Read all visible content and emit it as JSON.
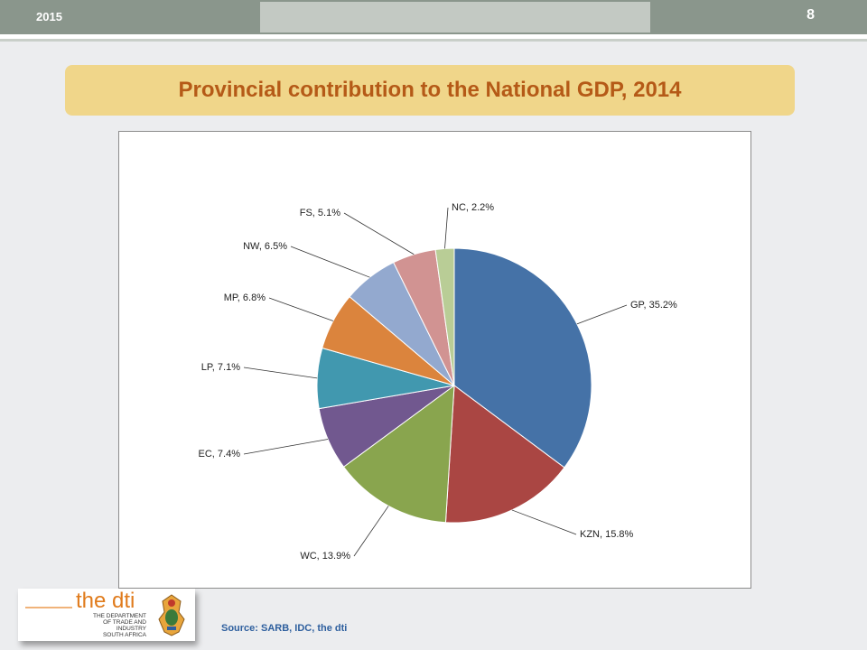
{
  "header": {
    "year": "2015",
    "page_number": "8"
  },
  "title": "Provincial contribution to the National GDP, 2014",
  "chart_data": {
    "type": "pie",
    "title": "Provincial contribution to the National GDP, 2014",
    "slices": [
      {
        "label": "GP, 35.2%",
        "name": "GP",
        "value": 35.2,
        "color": "#4572a7"
      },
      {
        "label": "KZN, 15.8%",
        "name": "KZN",
        "value": 15.8,
        "color": "#aa4643"
      },
      {
        "label": "WC, 13.9%",
        "name": "WC",
        "value": 13.9,
        "color": "#89a54e"
      },
      {
        "label": "EC, 7.4%",
        "name": "EC",
        "value": 7.4,
        "color": "#71588f"
      },
      {
        "label": "LP, 7.1%",
        "name": "LP",
        "value": 7.1,
        "color": "#4198af"
      },
      {
        "label": "MP, 6.8%",
        "name": "MP",
        "value": 6.8,
        "color": "#db843d"
      },
      {
        "label": "NW, 6.5%",
        "name": "NW",
        "value": 6.5,
        "color": "#93a9cf"
      },
      {
        "label": "FS, 5.1%",
        "name": "FS",
        "value": 5.1,
        "color": "#d19392"
      },
      {
        "label": "NC, 2.2%",
        "name": "NC",
        "value": 2.2,
        "color": "#b9cd96"
      }
    ]
  },
  "logo": {
    "name": "the dti",
    "subtitle_lines": [
      "THE DEPARTMENT",
      "OF TRADE AND INDUSTRY",
      "SOUTH AFRICA"
    ]
  },
  "source": "Source: SARB, IDC, the dti"
}
